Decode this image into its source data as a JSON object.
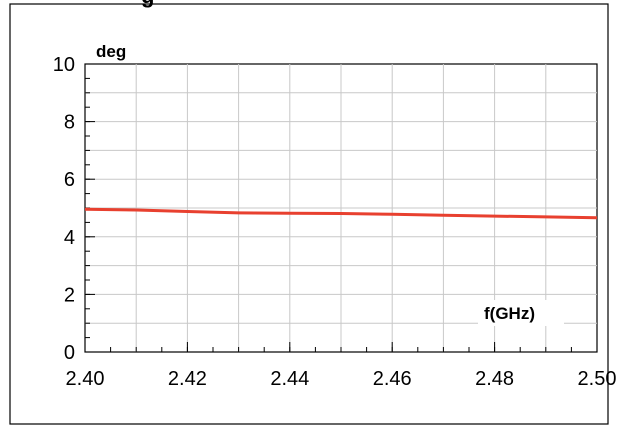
{
  "title_fragment": "g",
  "chart_data": {
    "type": "line",
    "title": "",
    "ylabel": "deg",
    "xlabel": "f(GHz)",
    "xlim": [
      2.4,
      2.5
    ],
    "ylim": [
      0,
      10
    ],
    "grid": true,
    "x_ticks": [
      "2.40",
      "2.42",
      "2.44",
      "2.46",
      "2.48",
      "2.50"
    ],
    "y_ticks": [
      "0",
      "2",
      "4",
      "6",
      "8",
      "10"
    ],
    "x_minor_step": 0.005,
    "y_minor_step": 0.5,
    "series": [
      {
        "color": "#e8402f",
        "x": [
          2.4,
          2.41,
          2.42,
          2.43,
          2.44,
          2.45,
          2.46,
          2.47,
          2.48,
          2.49,
          2.5
        ],
        "y": [
          4.96,
          4.93,
          4.88,
          4.83,
          4.82,
          4.81,
          4.78,
          4.75,
          4.72,
          4.69,
          4.66
        ]
      }
    ]
  }
}
